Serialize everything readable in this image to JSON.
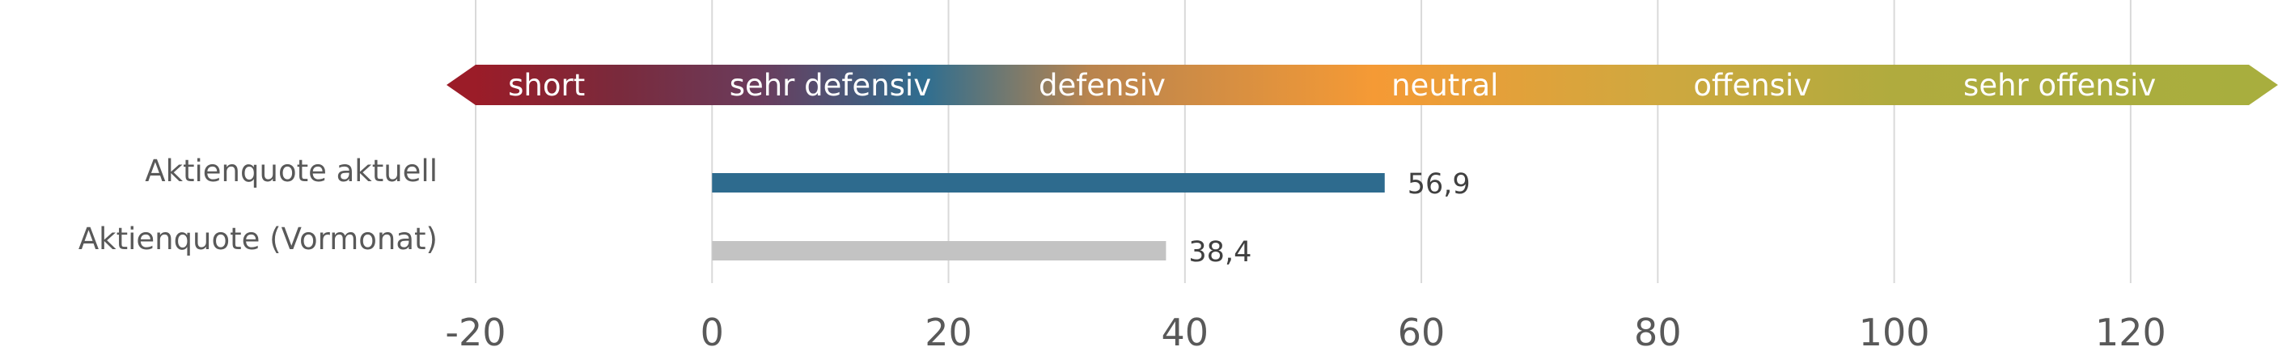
{
  "chart_data": {
    "type": "bar",
    "orientation": "horizontal",
    "categories": [
      "Aktienquote aktuell",
      "Aktienquote (Vormonat)"
    ],
    "values": [
      56.9,
      38.4
    ],
    "value_labels": [
      "56,9",
      "38,4"
    ],
    "series_colors": [
      "#2e6b8e",
      "#c3c3c3"
    ],
    "xlim": [
      -20,
      130
    ],
    "x_ticks": [
      -20,
      0,
      20,
      40,
      60,
      80,
      100,
      120
    ],
    "x_tick_labels": [
      "-20",
      "0",
      "20",
      "40",
      "60",
      "80",
      "100",
      "120"
    ],
    "grid": "vertical",
    "title": "",
    "xlabel": "",
    "ylabel": "",
    "scale_band": {
      "range": [
        -20,
        130
      ],
      "labels": [
        {
          "text": "short",
          "at": -14
        },
        {
          "text": "sehr defensiv",
          "at": 10
        },
        {
          "text": "defensiv",
          "at": 33
        },
        {
          "text": "neutral",
          "at": 62
        },
        {
          "text": "offensiv",
          "at": 88
        },
        {
          "text": "sehr offensiv",
          "at": 114
        }
      ],
      "colors": [
        {
          "value": -20,
          "color": "#9b1c28"
        },
        {
          "value": -8,
          "color": "#7a2a3c"
        },
        {
          "value": 4,
          "color": "#6a3c5c"
        },
        {
          "value": 18,
          "color": "#2f6e90"
        },
        {
          "value": 32,
          "color": "#b9844e"
        },
        {
          "value": 56,
          "color": "#f59a35"
        },
        {
          "value": 80,
          "color": "#cfa83f"
        },
        {
          "value": 100,
          "color": "#b0ab3e"
        },
        {
          "value": 130,
          "color": "#a8ae3e"
        }
      ]
    }
  }
}
